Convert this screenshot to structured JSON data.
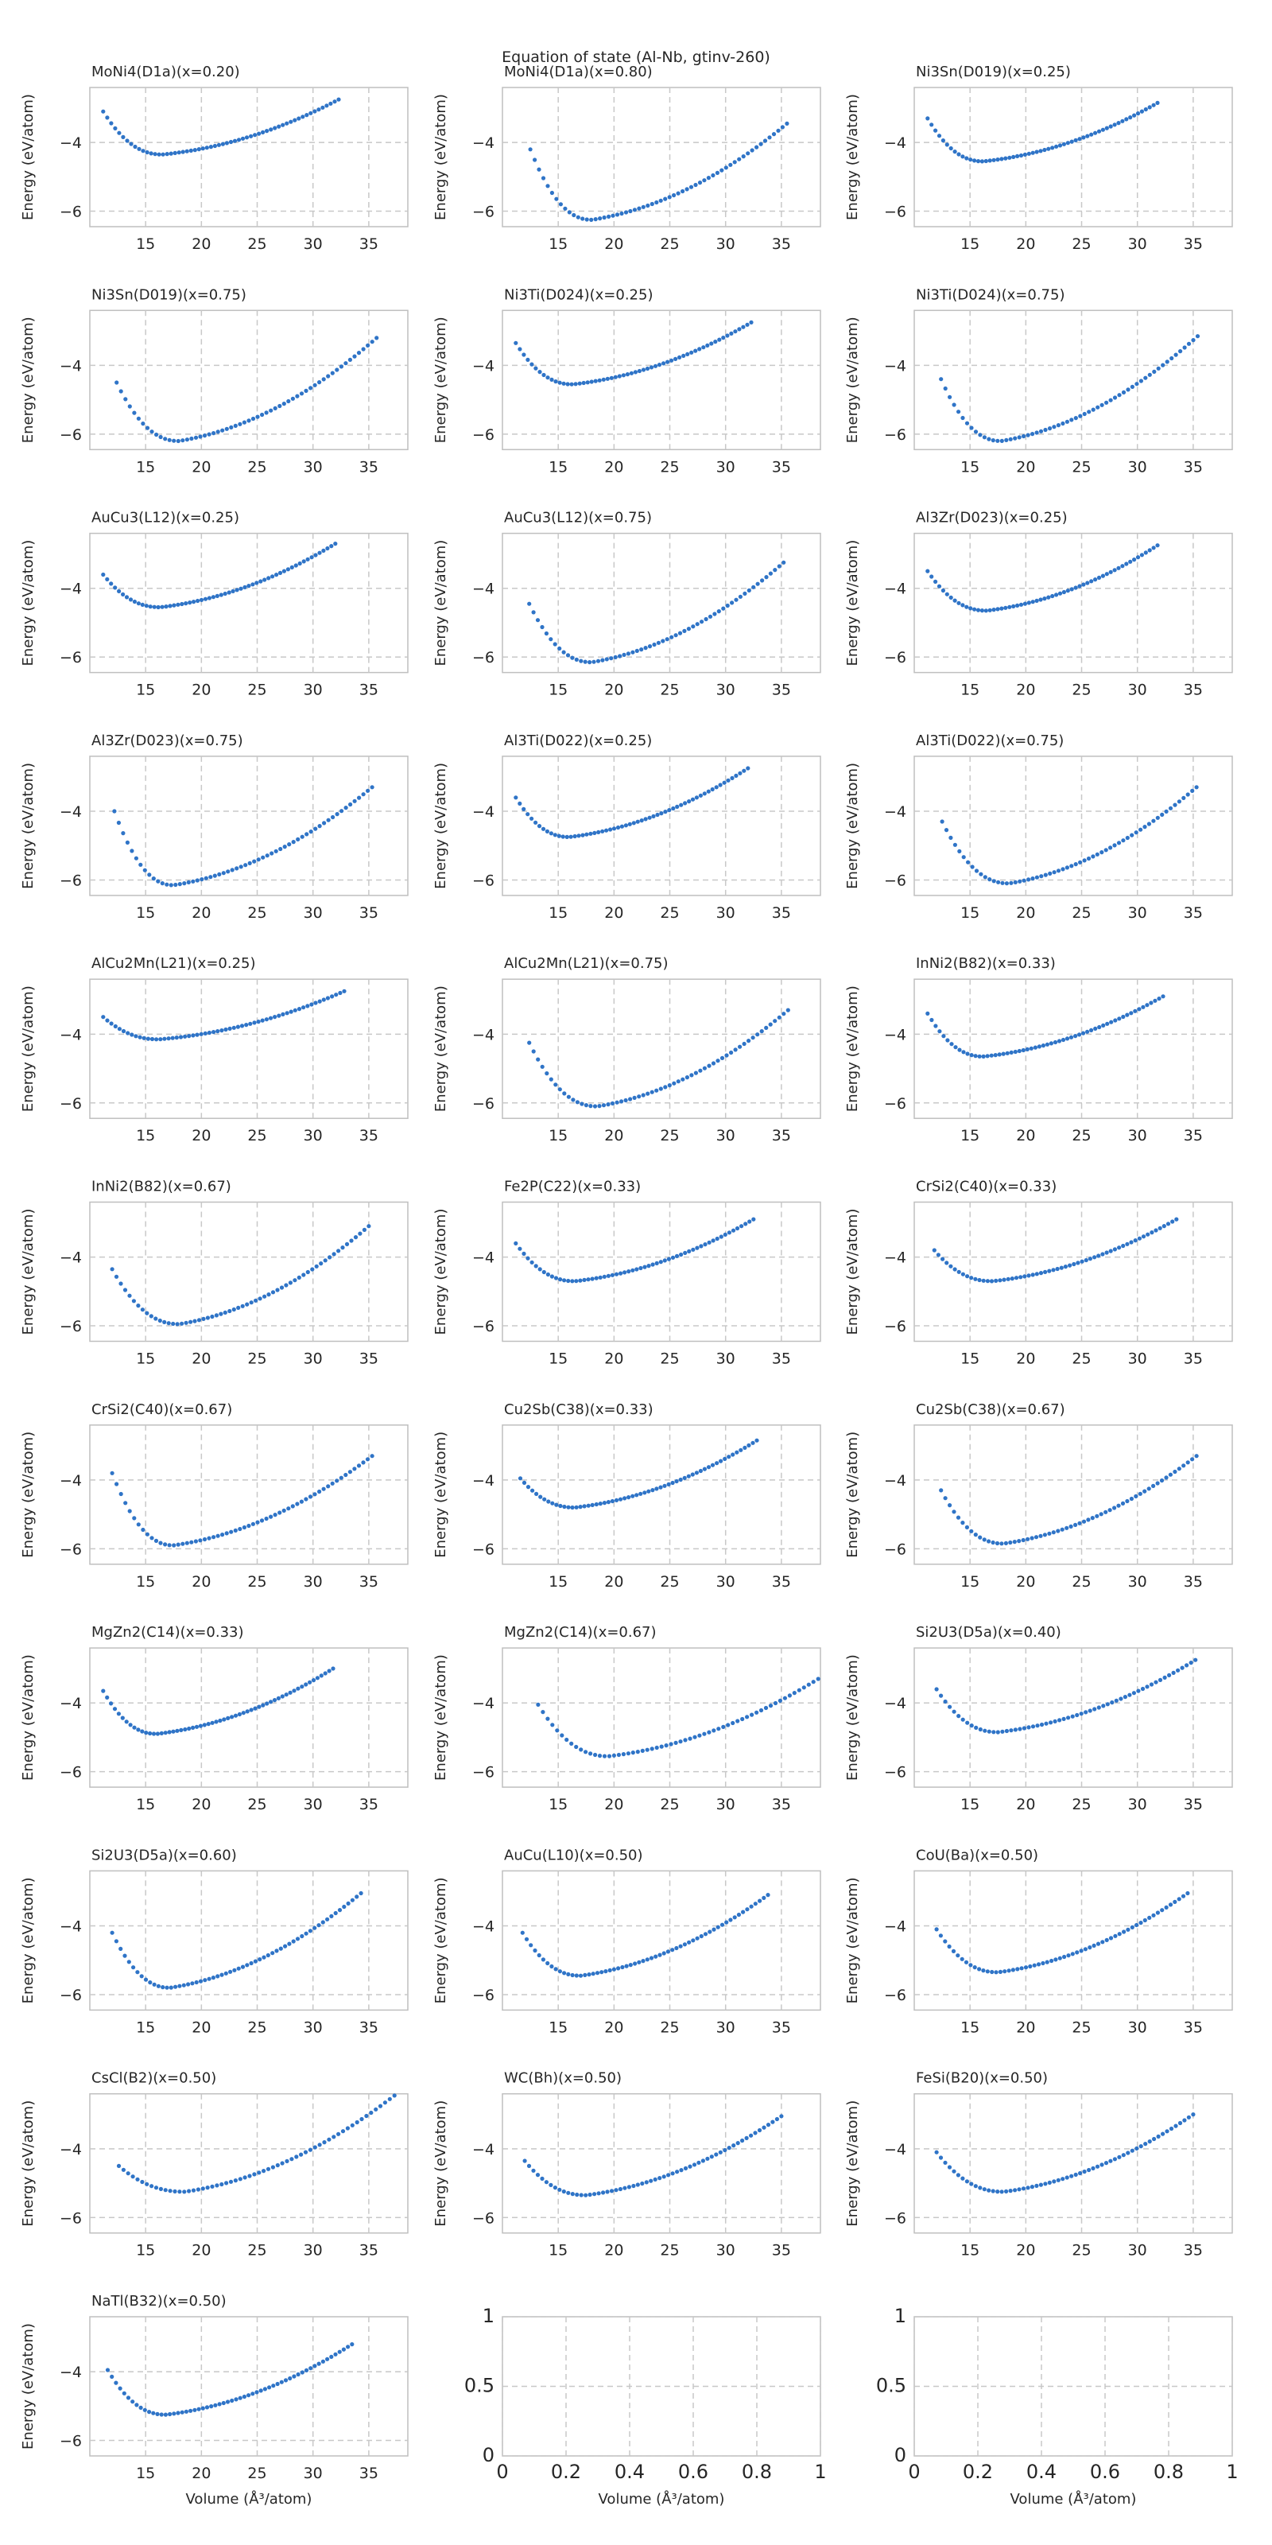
{
  "figure": {
    "suptitle": "Equation of state (Al-Nb, gtinv-260)",
    "accent_color": "#2f74c7",
    "grid_color": "#c8c8c8",
    "frame_color": "#bfbfbf"
  },
  "chart_data": [
    {
      "type": "scatter",
      "title": "MoNi4(D1a)(x=0.20)",
      "xlabel": "",
      "ylabel": "Energy (eV/atom)",
      "xlim": [
        10,
        38.5
      ],
      "ylim": [
        -6.45,
        -2.4
      ],
      "xticks": [
        15,
        20,
        25,
        30,
        35
      ],
      "yticks": [
        -4,
        -6
      ],
      "grid": true,
      "series": [
        {
          "v_min": 11.2,
          "v_max": 32.3,
          "v0": 16.5,
          "e0": -4.35,
          "e_left": -3.1,
          "e_right": -2.75
        }
      ]
    },
    {
      "type": "scatter",
      "title": "MoNi4(D1a)(x=0.80)",
      "xlabel": "",
      "ylabel": "Energy (eV/atom)",
      "xlim": [
        10,
        38.5
      ],
      "ylim": [
        -6.45,
        -2.4
      ],
      "xticks": [
        15,
        20,
        25,
        30,
        35
      ],
      "yticks": [
        -4,
        -6
      ],
      "grid": true,
      "series": [
        {
          "v_min": 12.5,
          "v_max": 35.5,
          "v0": 18.0,
          "e0": -6.25,
          "e_left": -4.2,
          "e_right": -3.45
        }
      ]
    },
    {
      "type": "scatter",
      "title": "Ni3Sn(D019)(x=0.25)",
      "xlabel": "",
      "ylabel": "Energy (eV/atom)",
      "xlim": [
        10,
        38.5
      ],
      "ylim": [
        -6.45,
        -2.4
      ],
      "xticks": [
        15,
        20,
        25,
        30,
        35
      ],
      "yticks": [
        -4,
        -6
      ],
      "grid": true,
      "series": [
        {
          "v_min": 11.2,
          "v_max": 31.8,
          "v0": 16.2,
          "e0": -4.55,
          "e_left": -3.3,
          "e_right": -2.85
        }
      ]
    },
    {
      "type": "scatter",
      "title": "Ni3Sn(D019)(x=0.75)",
      "xlabel": "",
      "ylabel": "Energy (eV/atom)",
      "xlim": [
        10,
        38.5
      ],
      "ylim": [
        -6.45,
        -2.4
      ],
      "xticks": [
        15,
        20,
        25,
        30,
        35
      ],
      "yticks": [
        -4,
        -6
      ],
      "grid": true,
      "series": [
        {
          "v_min": 12.4,
          "v_max": 35.7,
          "v0": 18.0,
          "e0": -6.2,
          "e_left": -4.5,
          "e_right": -3.2
        }
      ]
    },
    {
      "type": "scatter",
      "title": "Ni3Ti(D024)(x=0.25)",
      "xlabel": "",
      "ylabel": "Energy (eV/atom)",
      "xlim": [
        10,
        38.5
      ],
      "ylim": [
        -6.45,
        -2.4
      ],
      "xticks": [
        15,
        20,
        25,
        30,
        35
      ],
      "yticks": [
        -4,
        -6
      ],
      "grid": true,
      "series": [
        {
          "v_min": 11.2,
          "v_max": 32.3,
          "v0": 16.3,
          "e0": -4.55,
          "e_left": -3.35,
          "e_right": -2.75
        }
      ]
    },
    {
      "type": "scatter",
      "title": "Ni3Ti(D024)(x=0.75)",
      "xlabel": "",
      "ylabel": "Energy (eV/atom)",
      "xlim": [
        10,
        38.5
      ],
      "ylim": [
        -6.45,
        -2.4
      ],
      "xticks": [
        15,
        20,
        25,
        30,
        35
      ],
      "yticks": [
        -4,
        -6
      ],
      "grid": true,
      "series": [
        {
          "v_min": 12.4,
          "v_max": 35.4,
          "v0": 17.8,
          "e0": -6.2,
          "e_left": -4.4,
          "e_right": -3.15
        }
      ]
    },
    {
      "type": "scatter",
      "title": "AuCu3(L12)(x=0.25)",
      "xlabel": "",
      "ylabel": "Energy (eV/atom)",
      "xlim": [
        10,
        38.5
      ],
      "ylim": [
        -6.45,
        -2.4
      ],
      "xticks": [
        15,
        20,
        25,
        30,
        35
      ],
      "yticks": [
        -4,
        -6
      ],
      "grid": true,
      "series": [
        {
          "v_min": 11.2,
          "v_max": 32.0,
          "v0": 16.3,
          "e0": -4.55,
          "e_left": -3.6,
          "e_right": -2.7
        }
      ]
    },
    {
      "type": "scatter",
      "title": "AuCu3(L12)(x=0.75)",
      "xlabel": "",
      "ylabel": "Energy (eV/atom)",
      "xlim": [
        10,
        38.5
      ],
      "ylim": [
        -6.45,
        -2.4
      ],
      "xticks": [
        15,
        20,
        25,
        30,
        35
      ],
      "yticks": [
        -4,
        -6
      ],
      "grid": true,
      "series": [
        {
          "v_min": 12.4,
          "v_max": 35.2,
          "v0": 18.0,
          "e0": -6.15,
          "e_left": -4.45,
          "e_right": -3.25
        }
      ]
    },
    {
      "type": "scatter",
      "title": "Al3Zr(D023)(x=0.25)",
      "xlabel": "",
      "ylabel": "Energy (eV/atom)",
      "xlim": [
        10,
        38.5
      ],
      "ylim": [
        -6.45,
        -2.4
      ],
      "xticks": [
        15,
        20,
        25,
        30,
        35
      ],
      "yticks": [
        -4,
        -6
      ],
      "grid": true,
      "series": [
        {
          "v_min": 11.2,
          "v_max": 31.8,
          "v0": 16.5,
          "e0": -4.65,
          "e_left": -3.5,
          "e_right": -2.75
        }
      ]
    },
    {
      "type": "scatter",
      "title": "Al3Zr(D023)(x=0.75)",
      "xlabel": "",
      "ylabel": "Energy (eV/atom)",
      "xlim": [
        10,
        38.5
      ],
      "ylim": [
        -6.45,
        -2.4
      ],
      "xticks": [
        15,
        20,
        25,
        30,
        35
      ],
      "yticks": [
        -4,
        -6
      ],
      "grid": true,
      "series": [
        {
          "v_min": 12.2,
          "v_max": 35.3,
          "v0": 17.5,
          "e0": -6.15,
          "e_left": -4.0,
          "e_right": -3.3
        }
      ]
    },
    {
      "type": "scatter",
      "title": "Al3Ti(D022)(x=0.25)",
      "xlabel": "",
      "ylabel": "Energy (eV/atom)",
      "xlim": [
        10,
        38.5
      ],
      "ylim": [
        -6.45,
        -2.4
      ],
      "xticks": [
        15,
        20,
        25,
        30,
        35
      ],
      "yticks": [
        -4,
        -6
      ],
      "grid": true,
      "series": [
        {
          "v_min": 11.2,
          "v_max": 32.0,
          "v0": 16.0,
          "e0": -4.75,
          "e_left": -3.6,
          "e_right": -2.75
        }
      ]
    },
    {
      "type": "scatter",
      "title": "Al3Ti(D022)(x=0.75)",
      "xlabel": "",
      "ylabel": "Energy (eV/atom)",
      "xlim": [
        10,
        38.5
      ],
      "ylim": [
        -6.45,
        -2.4
      ],
      "xticks": [
        15,
        20,
        25,
        30,
        35
      ],
      "yticks": [
        -4,
        -6
      ],
      "grid": true,
      "series": [
        {
          "v_min": 12.5,
          "v_max": 35.3,
          "v0": 18.5,
          "e0": -6.1,
          "e_left": -4.3,
          "e_right": -3.3
        }
      ]
    },
    {
      "type": "scatter",
      "title": "AlCu2Mn(L21)(x=0.25)",
      "xlabel": "",
      "ylabel": "Energy (eV/atom)",
      "xlim": [
        10,
        38.5
      ],
      "ylim": [
        -6.45,
        -2.4
      ],
      "xticks": [
        15,
        20,
        25,
        30,
        35
      ],
      "yticks": [
        -4,
        -6
      ],
      "grid": true,
      "series": [
        {
          "v_min": 11.2,
          "v_max": 32.8,
          "v0": 16.2,
          "e0": -4.15,
          "e_left": -3.5,
          "e_right": -2.75
        }
      ]
    },
    {
      "type": "scatter",
      "title": "AlCu2Mn(L21)(x=0.75)",
      "xlabel": "",
      "ylabel": "Energy (eV/atom)",
      "xlim": [
        10,
        38.5
      ],
      "ylim": [
        -6.45,
        -2.4
      ],
      "xticks": [
        15,
        20,
        25,
        30,
        35
      ],
      "yticks": [
        -4,
        -6
      ],
      "grid": true,
      "series": [
        {
          "v_min": 12.4,
          "v_max": 35.6,
          "v0": 18.5,
          "e0": -6.1,
          "e_left": -4.25,
          "e_right": -3.3
        }
      ]
    },
    {
      "type": "scatter",
      "title": "InNi2(B82)(x=0.33)",
      "xlabel": "",
      "ylabel": "Energy (eV/atom)",
      "xlim": [
        10,
        38.5
      ],
      "ylim": [
        -6.45,
        -2.4
      ],
      "xticks": [
        15,
        20,
        25,
        30,
        35
      ],
      "yticks": [
        -4,
        -6
      ],
      "grid": true,
      "series": [
        {
          "v_min": 11.2,
          "v_max": 32.3,
          "v0": 16.2,
          "e0": -4.65,
          "e_left": -3.4,
          "e_right": -2.9
        }
      ]
    },
    {
      "type": "scatter",
      "title": "InNi2(B82)(x=0.67)",
      "xlabel": "",
      "ylabel": "Energy (eV/atom)",
      "xlim": [
        10,
        38.5
      ],
      "ylim": [
        -6.45,
        -2.4
      ],
      "xticks": [
        15,
        20,
        25,
        30,
        35
      ],
      "yticks": [
        -4,
        -6
      ],
      "grid": true,
      "series": [
        {
          "v_min": 12.0,
          "v_max": 35.0,
          "v0": 18.0,
          "e0": -5.95,
          "e_left": -4.35,
          "e_right": -3.1
        }
      ]
    },
    {
      "type": "scatter",
      "title": "Fe2P(C22)(x=0.33)",
      "xlabel": "",
      "ylabel": "Energy (eV/atom)",
      "xlim": [
        10,
        38.5
      ],
      "ylim": [
        -6.45,
        -2.4
      ],
      "xticks": [
        15,
        20,
        25,
        30,
        35
      ],
      "yticks": [
        -4,
        -6
      ],
      "grid": true,
      "series": [
        {
          "v_min": 11.2,
          "v_max": 32.5,
          "v0": 16.5,
          "e0": -4.7,
          "e_left": -3.6,
          "e_right": -2.9
        }
      ]
    },
    {
      "type": "scatter",
      "title": "CrSi2(C40)(x=0.33)",
      "xlabel": "",
      "ylabel": "Energy (eV/atom)",
      "xlim": [
        10,
        38.5
      ],
      "ylim": [
        -6.45,
        -2.4
      ],
      "xticks": [
        15,
        20,
        25,
        30,
        35
      ],
      "yticks": [
        -4,
        -6
      ],
      "grid": true,
      "series": [
        {
          "v_min": 11.8,
          "v_max": 33.5,
          "v0": 17.0,
          "e0": -4.7,
          "e_left": -3.8,
          "e_right": -2.9
        }
      ]
    },
    {
      "type": "scatter",
      "title": "CrSi2(C40)(x=0.67)",
      "xlabel": "",
      "ylabel": "Energy (eV/atom)",
      "xlim": [
        10,
        38.5
      ],
      "ylim": [
        -6.45,
        -2.4
      ],
      "xticks": [
        15,
        20,
        25,
        30,
        35
      ],
      "yticks": [
        -4,
        -6
      ],
      "grid": true,
      "series": [
        {
          "v_min": 12.0,
          "v_max": 35.3,
          "v0": 17.5,
          "e0": -5.9,
          "e_left": -3.8,
          "e_right": -3.3
        }
      ]
    },
    {
      "type": "scatter",
      "title": "Cu2Sb(C38)(x=0.33)",
      "xlabel": "",
      "ylabel": "Energy (eV/atom)",
      "xlim": [
        10,
        38.5
      ],
      "ylim": [
        -6.45,
        -2.4
      ],
      "xticks": [
        15,
        20,
        25,
        30,
        35
      ],
      "yticks": [
        -4,
        -6
      ],
      "grid": true,
      "series": [
        {
          "v_min": 11.6,
          "v_max": 32.8,
          "v0": 16.5,
          "e0": -4.8,
          "e_left": -3.95,
          "e_right": -2.85
        }
      ]
    },
    {
      "type": "scatter",
      "title": "Cu2Sb(C38)(x=0.67)",
      "xlabel": "",
      "ylabel": "Energy (eV/atom)",
      "xlim": [
        10,
        38.5
      ],
      "ylim": [
        -6.45,
        -2.4
      ],
      "xticks": [
        15,
        20,
        25,
        30,
        35
      ],
      "yticks": [
        -4,
        -6
      ],
      "grid": true,
      "series": [
        {
          "v_min": 12.4,
          "v_max": 35.3,
          "v0": 18.0,
          "e0": -5.85,
          "e_left": -4.3,
          "e_right": -3.3
        }
      ]
    },
    {
      "type": "scatter",
      "title": "MgZn2(C14)(x=0.33)",
      "xlabel": "",
      "ylabel": "Energy (eV/atom)",
      "xlim": [
        10,
        38.5
      ],
      "ylim": [
        -6.45,
        -2.4
      ],
      "xticks": [
        15,
        20,
        25,
        30,
        35
      ],
      "yticks": [
        -4,
        -6
      ],
      "grid": true,
      "series": [
        {
          "v_min": 11.2,
          "v_max": 31.8,
          "v0": 16.0,
          "e0": -4.9,
          "e_left": -3.65,
          "e_right": -3.0
        }
      ]
    },
    {
      "type": "scatter",
      "title": "MgZn2(C14)(x=0.67)",
      "xlabel": "",
      "ylabel": "Energy (eV/atom)",
      "xlim": [
        10,
        38.5
      ],
      "ylim": [
        -6.45,
        -2.4
      ],
      "xticks": [
        15,
        20,
        25,
        30,
        35
      ],
      "yticks": [
        -4,
        -6
      ],
      "grid": true,
      "series": [
        {
          "v_min": 13.2,
          "v_max": 38.3,
          "v0": 19.5,
          "e0": -5.55,
          "e_left": -4.05,
          "e_right": -3.3
        }
      ]
    },
    {
      "type": "scatter",
      "title": "Si2U3(D5a)(x=0.40)",
      "xlabel": "",
      "ylabel": "Energy (eV/atom)",
      "xlim": [
        10,
        38.5
      ],
      "ylim": [
        -6.45,
        -2.4
      ],
      "xticks": [
        15,
        20,
        25,
        30,
        35
      ],
      "yticks": [
        -4,
        -6
      ],
      "grid": true,
      "series": [
        {
          "v_min": 12.0,
          "v_max": 35.2,
          "v0": 17.5,
          "e0": -4.85,
          "e_left": -3.6,
          "e_right": -2.75
        }
      ]
    },
    {
      "type": "scatter",
      "title": "Si2U3(D5a)(x=0.60)",
      "xlabel": "",
      "ylabel": "Energy (eV/atom)",
      "xlim": [
        10,
        38.5
      ],
      "ylim": [
        -6.45,
        -2.4
      ],
      "xticks": [
        15,
        20,
        25,
        30,
        35
      ],
      "yticks": [
        -4,
        -6
      ],
      "grid": true,
      "series": [
        {
          "v_min": 12.0,
          "v_max": 34.3,
          "v0": 17.2,
          "e0": -5.8,
          "e_left": -4.2,
          "e_right": -3.05
        }
      ]
    },
    {
      "type": "scatter",
      "title": "AuCu(L10)(x=0.50)",
      "xlabel": "",
      "ylabel": "Energy (eV/atom)",
      "xlim": [
        10,
        38.5
      ],
      "ylim": [
        -6.45,
        -2.4
      ],
      "xticks": [
        15,
        20,
        25,
        30,
        35
      ],
      "yticks": [
        -4,
        -6
      ],
      "grid": true,
      "series": [
        {
          "v_min": 11.8,
          "v_max": 33.8,
          "v0": 17.0,
          "e0": -5.45,
          "e_left": -4.2,
          "e_right": -3.1
        }
      ]
    },
    {
      "type": "scatter",
      "title": "CoU(Ba)(x=0.50)",
      "xlabel": "",
      "ylabel": "Energy (eV/atom)",
      "xlim": [
        10,
        38.5
      ],
      "ylim": [
        -6.45,
        -2.4
      ],
      "xticks": [
        15,
        20,
        25,
        30,
        35
      ],
      "yticks": [
        -4,
        -6
      ],
      "grid": true,
      "series": [
        {
          "v_min": 12.0,
          "v_max": 34.5,
          "v0": 17.5,
          "e0": -5.35,
          "e_left": -4.1,
          "e_right": -3.05
        }
      ]
    },
    {
      "type": "scatter",
      "title": "CsCl(B2)(x=0.50)",
      "xlabel": "",
      "ylabel": "Energy (eV/atom)",
      "xlim": [
        10,
        38.5
      ],
      "ylim": [
        -6.45,
        -2.4
      ],
      "xticks": [
        15,
        20,
        25,
        30,
        35
      ],
      "yticks": [
        -4,
        -6
      ],
      "grid": true,
      "series": [
        {
          "v_min": 12.6,
          "v_max": 37.3,
          "v0": 18.5,
          "e0": -5.25,
          "e_left": -4.5,
          "e_right": -2.45
        }
      ]
    },
    {
      "type": "scatter",
      "title": "WC(Bh)(x=0.50)",
      "xlabel": "",
      "ylabel": "Energy (eV/atom)",
      "xlim": [
        10,
        38.5
      ],
      "ylim": [
        -6.45,
        -2.4
      ],
      "xticks": [
        15,
        20,
        25,
        30,
        35
      ],
      "yticks": [
        -4,
        -6
      ],
      "grid": true,
      "series": [
        {
          "v_min": 12.0,
          "v_max": 35.0,
          "v0": 17.5,
          "e0": -5.35,
          "e_left": -4.35,
          "e_right": -3.05
        }
      ]
    },
    {
      "type": "scatter",
      "title": "FeSi(B20)(x=0.50)",
      "xlabel": "",
      "ylabel": "Energy (eV/atom)",
      "xlim": [
        10,
        38.5
      ],
      "ylim": [
        -6.45,
        -2.4
      ],
      "xticks": [
        15,
        20,
        25,
        30,
        35
      ],
      "yticks": [
        -4,
        -6
      ],
      "grid": true,
      "series": [
        {
          "v_min": 12.0,
          "v_max": 35.0,
          "v0": 18.0,
          "e0": -5.25,
          "e_left": -4.1,
          "e_right": -3.0
        }
      ]
    },
    {
      "type": "scatter",
      "title": "NaTl(B32)(x=0.50)",
      "xlabel": "Volume (Å³/atom)",
      "ylabel": "Energy (eV/atom)",
      "xlim": [
        10,
        38.5
      ],
      "ylim": [
        -6.45,
        -2.4
      ],
      "xticks": [
        15,
        20,
        25,
        30,
        35
      ],
      "yticks": [
        -4,
        -6
      ],
      "grid": true,
      "series": [
        {
          "v_min": 11.6,
          "v_max": 33.5,
          "v0": 16.8,
          "e0": -5.25,
          "e_left": -3.95,
          "e_right": -3.2
        }
      ]
    },
    {
      "type": "scatter",
      "title": "",
      "xlabel": "Volume (Å³/atom)",
      "ylabel": "",
      "xlim": [
        0,
        1
      ],
      "ylim": [
        0,
        1
      ],
      "xticks": [
        0,
        0.2,
        0.4,
        0.6,
        0.8,
        1
      ],
      "yticks": [
        0,
        0.5,
        1
      ],
      "grid": true,
      "empty": true,
      "series": []
    },
    {
      "type": "scatter",
      "title": "",
      "xlabel": "Volume (Å³/atom)",
      "ylabel": "",
      "xlim": [
        0,
        1
      ],
      "ylim": [
        0,
        1
      ],
      "xticks": [
        0,
        0.2,
        0.4,
        0.6,
        0.8,
        1
      ],
      "yticks": [
        0,
        0.5,
        1
      ],
      "grid": true,
      "empty": true,
      "series": []
    }
  ]
}
